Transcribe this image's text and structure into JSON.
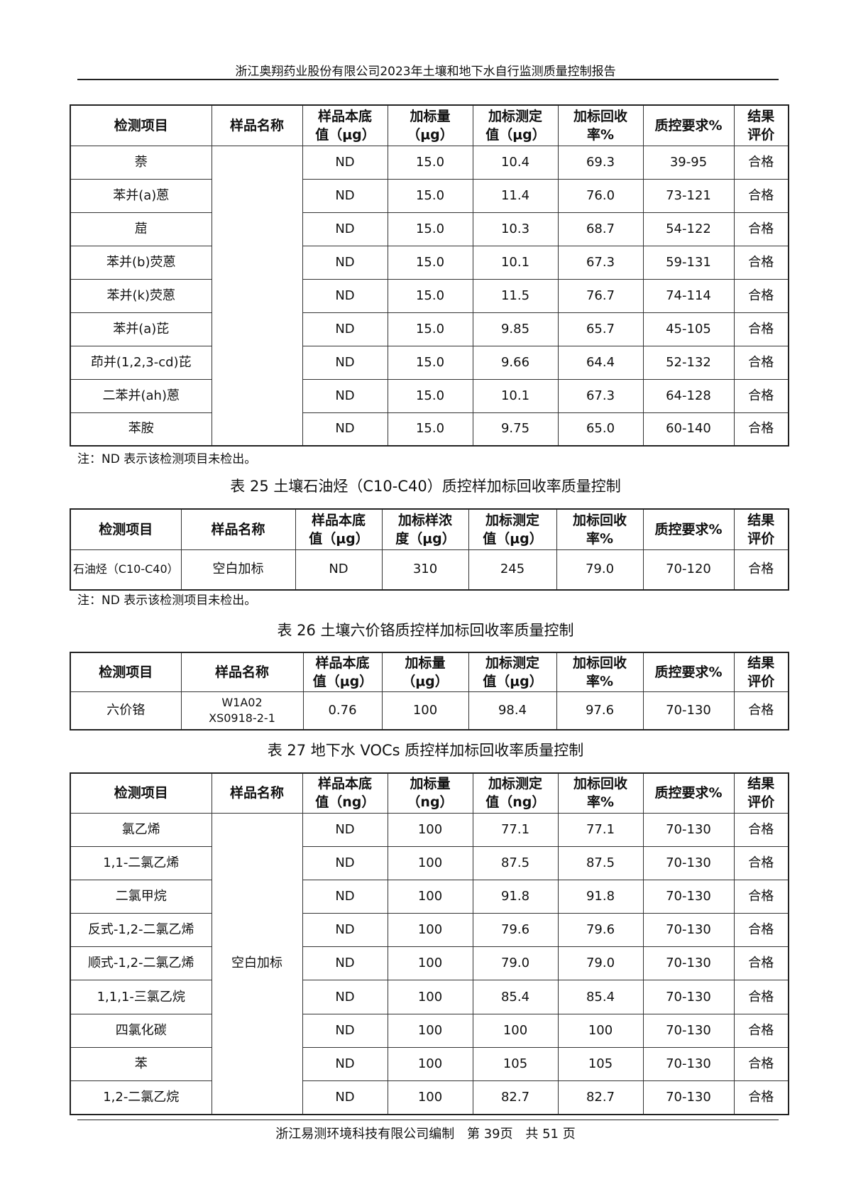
{
  "header": "浙江奥翔药业股份有限公司2023年土壤和地下水自行监测质量控制报告",
  "footer": {
    "org": "浙江易测环境科技有限公司编制",
    "page": "第 39页",
    "total": "共 51 页"
  },
  "table1": {
    "headers": [
      "检测项目",
      "样品名称",
      "样品本底值（μg）",
      "加标量（μg）",
      "加标测定值（μg）",
      "加标回收率%",
      "质控要求%",
      "结果评价"
    ],
    "sample_name": "",
    "rows": [
      [
        "萘",
        "ND",
        "15.0",
        "10.4",
        "69.3",
        "39-95",
        "合格"
      ],
      [
        "苯并(a)蒽",
        "ND",
        "15.0",
        "11.4",
        "76.0",
        "73-121",
        "合格"
      ],
      [
        "䓛",
        "ND",
        "15.0",
        "10.3",
        "68.7",
        "54-122",
        "合格"
      ],
      [
        "苯并(b)荧蒽",
        "ND",
        "15.0",
        "10.1",
        "67.3",
        "59-131",
        "合格"
      ],
      [
        "苯并(k)荧蒽",
        "ND",
        "15.0",
        "11.5",
        "76.7",
        "74-114",
        "合格"
      ],
      [
        "苯并(a)芘",
        "ND",
        "15.0",
        "9.85",
        "65.7",
        "45-105",
        "合格"
      ],
      [
        "茚并(1,2,3-cd)芘",
        "ND",
        "15.0",
        "9.66",
        "64.4",
        "52-132",
        "合格"
      ],
      [
        "二苯并(ah)蒽",
        "ND",
        "15.0",
        "10.1",
        "67.3",
        "64-128",
        "合格"
      ],
      [
        "苯胺",
        "ND",
        "15.0",
        "9.75",
        "65.0",
        "60-140",
        "合格"
      ]
    ],
    "note": "注：ND 表示该检测项目未检出。"
  },
  "table25": {
    "caption": "表 25 土壤石油烃（C10-C40）质控样加标回收率质量控制",
    "headers": [
      "检测项目",
      "样品名称",
      "样品本底值（μg）",
      "加标样浓度（μg）",
      "加标测定值（μg）",
      "加标回收率%",
      "质控要求%",
      "结果评价"
    ],
    "row": [
      "石油烃（C10-C40）",
      "空白加标",
      "ND",
      "310",
      "245",
      "79.0",
      "70-120",
      "合格"
    ],
    "note": "注：ND 表示该检测项目未检出。"
  },
  "table26": {
    "caption": "表 26 土壤六价铬质控样加标回收率质量控制",
    "headers": [
      "检测项目",
      "样品名称",
      "样品本底值（μg）",
      "加标量（μg）",
      "加标测定值（μg）",
      "加标回收率%",
      "质控要求%",
      "结果评价"
    ],
    "row": [
      "六价铬",
      "W1A02 XS0918-2-1",
      "0.76",
      "100",
      "98.4",
      "97.6",
      "70-130",
      "合格"
    ]
  },
  "table27": {
    "caption": "表 27 地下水 VOCs 质控样加标回收率质量控制",
    "headers": [
      "检测项目",
      "样品名称",
      "样品本底值（ng）",
      "加标量（ng）",
      "加标测定值（ng）",
      "加标回收率%",
      "质控要求%",
      "结果评价"
    ],
    "sample_name": "空白加标",
    "rows": [
      [
        "氯乙烯",
        "ND",
        "100",
        "77.1",
        "77.1",
        "70-130",
        "合格"
      ],
      [
        "1,1-二氯乙烯",
        "ND",
        "100",
        "87.5",
        "87.5",
        "70-130",
        "合格"
      ],
      [
        "二氯甲烷",
        "ND",
        "100",
        "91.8",
        "91.8",
        "70-130",
        "合格"
      ],
      [
        "反式-1,2-二氯乙烯",
        "ND",
        "100",
        "79.6",
        "79.6",
        "70-130",
        "合格"
      ],
      [
        "顺式-1,2-二氯乙烯",
        "ND",
        "100",
        "79.0",
        "79.0",
        "70-130",
        "合格"
      ],
      [
        "1,1,1-三氯乙烷",
        "ND",
        "100",
        "85.4",
        "85.4",
        "70-130",
        "合格"
      ],
      [
        "四氯化碳",
        "ND",
        "100",
        "100",
        "100",
        "70-130",
        "合格"
      ],
      [
        "苯",
        "ND",
        "100",
        "105",
        "105",
        "70-130",
        "合格"
      ],
      [
        "1,2-二氯乙烷",
        "ND",
        "100",
        "82.7",
        "82.7",
        "70-130",
        "合格"
      ]
    ]
  }
}
